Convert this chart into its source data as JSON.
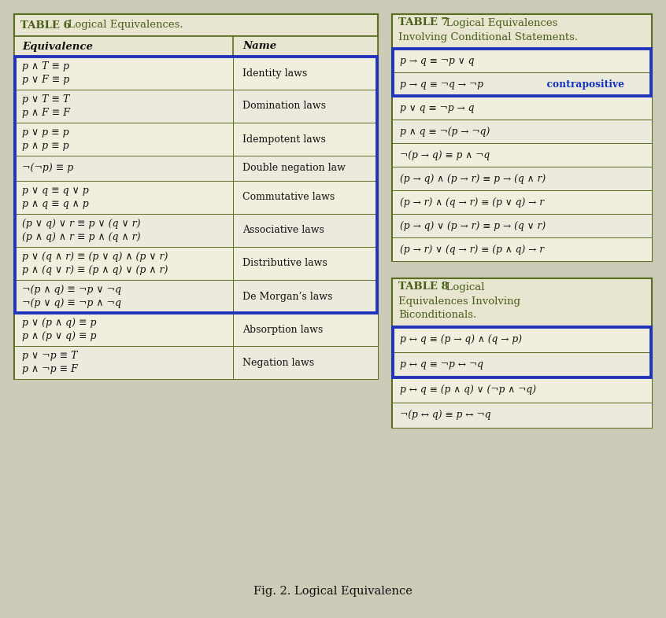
{
  "bg_color": "#cccbb8",
  "table_bg": "#f0eedc",
  "table_bg2": "#eceadc",
  "title_bg": "#e8e6d0",
  "border_color": "#5a6e22",
  "title_color": "#4a5e1a",
  "text_color": "#111111",
  "blue_box_color": "#2233bb",
  "contrapositive_color": "#1133bb",
  "fig_caption": "Fig. 2. Logical Equivalence",
  "table6_title_bold": "TABLE 6",
  "table6_title_rest": "  Logical Equivalences.",
  "table6_col1_header": "Equivalence",
  "table6_col2_header": "Name",
  "table6_rows": [
    {
      "eq1": "p ∧ T ≡ p",
      "eq2": "p ∨ F ≡ p",
      "name": "Identity laws"
    },
    {
      "eq1": "p ∨ T ≡ T",
      "eq2": "p ∧ F ≡ F",
      "name": "Domination laws"
    },
    {
      "eq1": "p ∨ p ≡ p",
      "eq2": "p ∧ p ≡ p",
      "name": "Idempotent laws"
    },
    {
      "eq1": "¬(¬p) ≡ p",
      "eq2": null,
      "name": "Double negation law"
    },
    {
      "eq1": "p ∨ q ≡ q ∨ p",
      "eq2": "p ∧ q ≡ q ∧ p",
      "name": "Commutative laws"
    },
    {
      "eq1": "(p ∨ q) ∨ r ≡ p ∨ (q ∨ r)",
      "eq2": "(p ∧ q) ∧ r ≡ p ∧ (q ∧ r)",
      "name": "Associative laws"
    },
    {
      "eq1": "p ∨ (q ∧ r) ≡ (p ∨ q) ∧ (p ∨ r)",
      "eq2": "p ∧ (q ∨ r) ≡ (p ∧ q) ∨ (p ∧ r)",
      "name": "Distributive laws"
    },
    {
      "eq1": "¬(p ∧ q) ≡ ¬p ∨ ¬q",
      "eq2": "¬(p ∨ q) ≡ ¬p ∧ ¬q",
      "name": "De Morgan’s laws"
    },
    {
      "eq1": "p ∨ (p ∧ q) ≡ p",
      "eq2": "p ∧ (p ∨ q) ≡ p",
      "name": "Absorption laws"
    },
    {
      "eq1": "p ∨ ¬p ≡ T",
      "eq2": "p ∧ ¬p ≡ F",
      "name": "Negation laws"
    }
  ],
  "table6_blue_rows": [
    0,
    1,
    2,
    3,
    4,
    5,
    6,
    7
  ],
  "table7_title_bold": "TABLE 7",
  "table7_title_rest1": "  Logical Equivalences",
  "table7_title_rest2": "Involving Conditional Statements.",
  "table7_rows": [
    {
      "eq": "p → q ≡ ¬p ∨ q",
      "blue": true,
      "contra": false
    },
    {
      "eq": "p → q ≡ ¬q → ¬p",
      "blue": true,
      "contra": true
    },
    {
      "eq": "p ∨ q ≡ ¬p → q",
      "blue": false,
      "contra": false
    },
    {
      "eq": "p ∧ q ≡ ¬(p → ¬q)",
      "blue": false,
      "contra": false
    },
    {
      "eq": "¬(p → q) ≡ p ∧ ¬q",
      "blue": false,
      "contra": false
    },
    {
      "eq": "(p → q) ∧ (p → r) ≡ p → (q ∧ r)",
      "blue": false,
      "contra": false
    },
    {
      "eq": "(p → r) ∧ (q → r) ≡ (p ∨ q) → r",
      "blue": false,
      "contra": false
    },
    {
      "eq": "(p → q) ∨ (p → r) ≡ p → (q ∨ r)",
      "blue": false,
      "contra": false
    },
    {
      "eq": "(p → r) ∨ (q → r) ≡ (p ∧ q) → r",
      "blue": false,
      "contra": false
    }
  ],
  "table8_title_bold": "TABLE 8",
  "table8_title_rest1": "  Logical",
  "table8_title_rest2": "Equivalences Involving",
  "table8_title_rest3": "Biconditionals.",
  "table8_rows": [
    {
      "eq": "p ↔ q ≡ (p → q) ∧ (q → p)",
      "blue": true
    },
    {
      "eq": "p ↔ q ≡ ¬p ↔ ¬q",
      "blue": true
    },
    {
      "eq": "p ↔ q ≡ (p ∧ q) ∨ (¬p ∧ ¬q)",
      "blue": false
    },
    {
      "eq": "¬(p ↔ q) ≡ p ↔ ¬q",
      "blue": false
    }
  ]
}
